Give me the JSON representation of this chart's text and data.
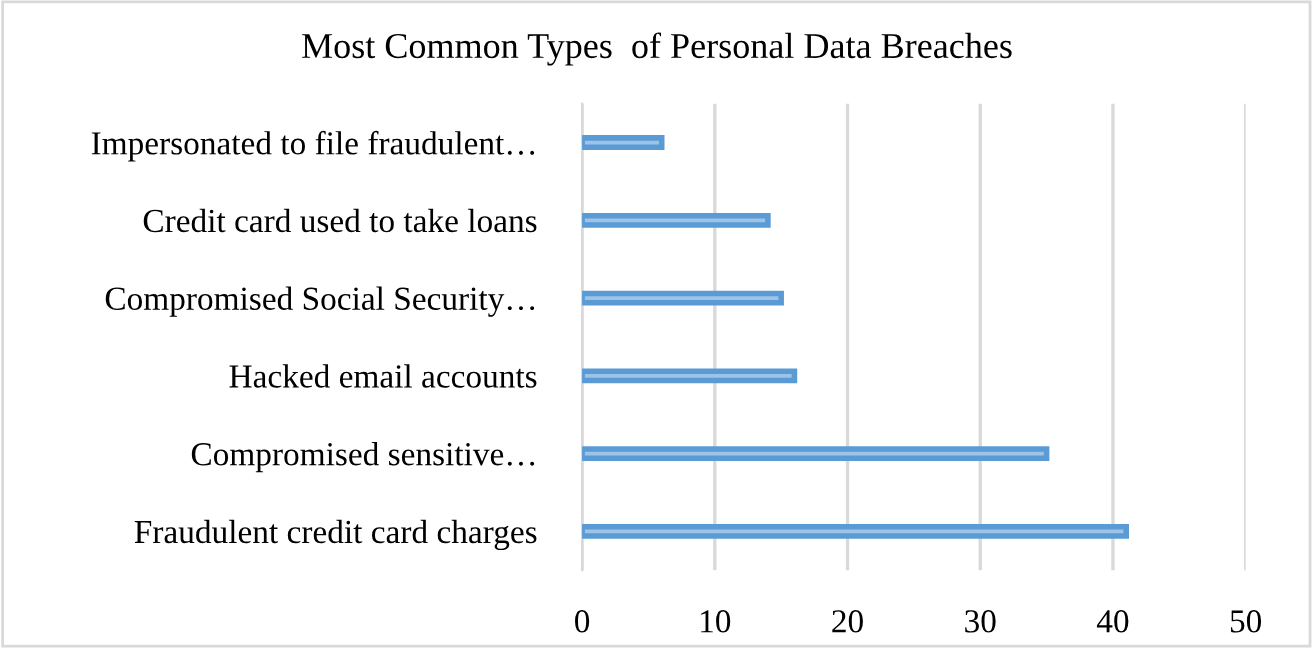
{
  "chart_data": {
    "type": "bar",
    "orientation": "horizontal",
    "title": "Most Common Types  of Personal Data Breaches",
    "categories": [
      "Impersonated to file fraudulent…",
      "Credit card used to take loans",
      "Compromised Social Security…",
      "Hacked email accounts",
      "Compromised sensitive…",
      "Fraudulent credit card charges"
    ],
    "values": [
      6,
      14,
      15,
      16,
      35,
      41
    ],
    "color": "#9dc3e6",
    "xlim": [
      0,
      50
    ],
    "xticks": [
      0,
      10,
      20,
      30,
      40,
      50
    ],
    "grid": "x"
  }
}
